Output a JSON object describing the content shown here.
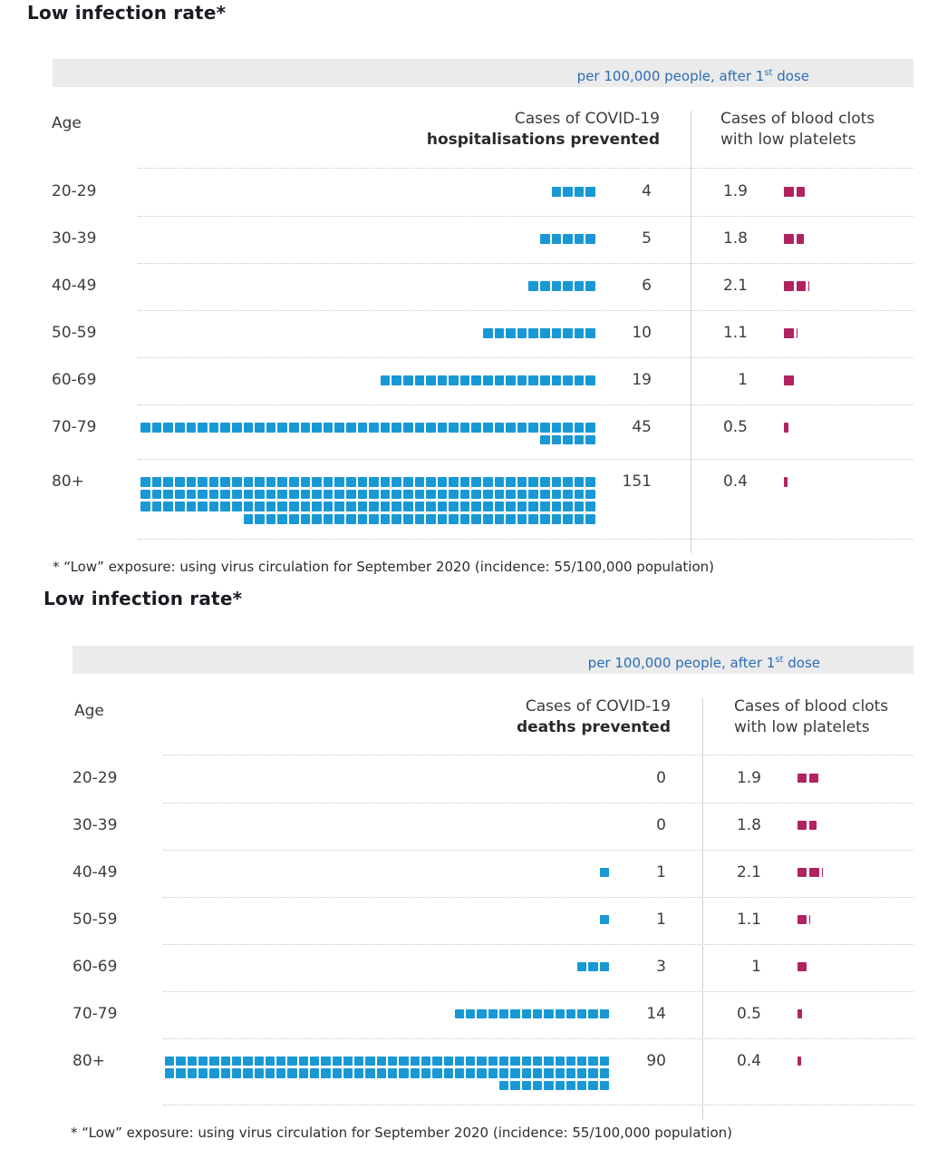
{
  "charts": [
    {
      "title": "Low infection rate*",
      "unit_prefix": "per 100,000 people, after 1",
      "unit_sup": "st",
      "unit_suffix": " dose",
      "age_header": "Age",
      "col1_line1": "Cases of COVID-19",
      "col1_line2": "hospitalisations prevented",
      "col2_line1": "Cases of blood clots",
      "col2_line2": "with low platelets",
      "footnote": "* “Low” exposure: using virus circulation for September 2020 (incidence: 55/100,000 population)",
      "rows": [
        {
          "age": "20-29",
          "prevented": 4,
          "prevented_label": "4",
          "clots": 1.9,
          "clots_label": "1.9"
        },
        {
          "age": "30-39",
          "prevented": 5,
          "prevented_label": "5",
          "clots": 1.8,
          "clots_label": "1.8"
        },
        {
          "age": "40-49",
          "prevented": 6,
          "prevented_label": "6",
          "clots": 2.1,
          "clots_label": "2.1"
        },
        {
          "age": "50-59",
          "prevented": 10,
          "prevented_label": "10",
          "clots": 1.1,
          "clots_label": "1.1"
        },
        {
          "age": "60-69",
          "prevented": 19,
          "prevented_label": "19",
          "clots": 1,
          "clots_label": "1"
        },
        {
          "age": "70-79",
          "prevented": 45,
          "prevented_label": "45",
          "clots": 0.5,
          "clots_label": "0.5"
        },
        {
          "age": "80+",
          "prevented": 151,
          "prevented_label": "151",
          "clots": 0.4,
          "clots_label": "0.4"
        }
      ]
    },
    {
      "title": "Low infection rate*",
      "unit_prefix": "per 100,000 people, after 1",
      "unit_sup": "st",
      "unit_suffix": " dose",
      "age_header": "Age",
      "col1_line1": "Cases of COVID-19",
      "col1_line2": "deaths prevented",
      "col2_line1": "Cases of blood clots",
      "col2_line2": "with low platelets",
      "footnote": "* “Low” exposure: using virus circulation for September 2020 (incidence: 55/100,000 population)",
      "rows": [
        {
          "age": "20-29",
          "prevented": 0,
          "prevented_label": "0",
          "clots": 1.9,
          "clots_label": "1.9"
        },
        {
          "age": "30-39",
          "prevented": 0,
          "prevented_label": "0",
          "clots": 1.8,
          "clots_label": "1.8"
        },
        {
          "age": "40-49",
          "prevented": 1,
          "prevented_label": "1",
          "clots": 2.1,
          "clots_label": "2.1"
        },
        {
          "age": "50-59",
          "prevented": 1,
          "prevented_label": "1",
          "clots": 1.1,
          "clots_label": "1.1"
        },
        {
          "age": "60-69",
          "prevented": 3,
          "prevented_label": "3",
          "clots": 1,
          "clots_label": "1"
        },
        {
          "age": "70-79",
          "prevented": 14,
          "prevented_label": "14",
          "clots": 0.5,
          "clots_label": "0.5"
        },
        {
          "age": "80+",
          "prevented": 90,
          "prevented_label": "90",
          "clots": 0.4,
          "clots_label": "0.4"
        }
      ]
    }
  ],
  "chart_data": [
    {
      "type": "pictogram-table",
      "title": "Low infection rate*",
      "unit": "per 100,000 people, after 1st dose",
      "categories": [
        "20-29",
        "30-39",
        "40-49",
        "50-59",
        "60-69",
        "70-79",
        "80+"
      ],
      "series": [
        {
          "name": "Cases of COVID-19 hospitalisations prevented",
          "values": [
            4,
            5,
            6,
            10,
            19,
            45,
            151
          ],
          "color": "#1898d4"
        },
        {
          "name": "Cases of blood clots with low platelets",
          "values": [
            1.9,
            1.8,
            2.1,
            1.1,
            1,
            0.5,
            0.4
          ],
          "color": "#b12360"
        }
      ],
      "layout": {
        "squares_per_row": 40,
        "grid": "dotted row separators",
        "legend_position": "column headers"
      },
      "footnote": "* “Low” exposure: using virus circulation for September 2020 (incidence: 55/100,000 population)"
    },
    {
      "type": "pictogram-table",
      "title": "Low infection rate*",
      "unit": "per 100,000 people, after 1st dose",
      "categories": [
        "20-29",
        "30-39",
        "40-49",
        "50-59",
        "60-69",
        "70-79",
        "80+"
      ],
      "series": [
        {
          "name": "Cases of COVID-19 deaths prevented",
          "values": [
            0,
            0,
            1,
            1,
            3,
            14,
            90
          ],
          "color": "#1898d4"
        },
        {
          "name": "Cases of blood clots with low platelets",
          "values": [
            1.9,
            1.8,
            2.1,
            1.1,
            1,
            0.5,
            0.4
          ],
          "color": "#b12360"
        }
      ],
      "layout": {
        "squares_per_row": 40,
        "grid": "dotted row separators",
        "legend_position": "column headers"
      },
      "footnote": "* “Low” exposure: using virus circulation for September 2020 (incidence: 55/100,000 population)"
    }
  ],
  "colors": {
    "pictogram_blue": "#1898d4",
    "pictogram_maroon": "#b12360",
    "unit_bar_bg": "#ebebeb",
    "unit_text": "#2a6db5"
  }
}
